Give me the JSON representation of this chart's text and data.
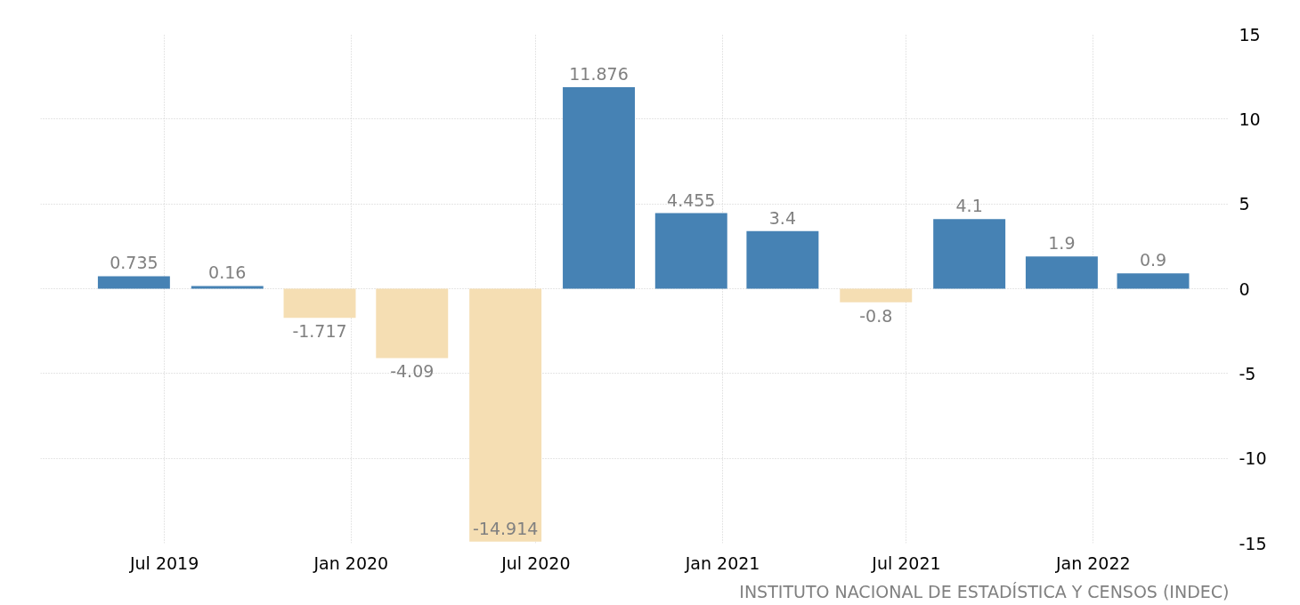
{
  "chart_data": {
    "type": "bar",
    "x": [
      "2019-06-01",
      "2019-09-01",
      "2019-12-01",
      "2020-03-01",
      "2020-06-01",
      "2020-09-01",
      "2020-12-01",
      "2021-03-01",
      "2021-06-01",
      "2021-09-01",
      "2021-12-01",
      "2022-03-01"
    ],
    "values": [
      0.735,
      0.16,
      -1.717,
      -4.09,
      -14.914,
      11.876,
      4.455,
      3.4,
      -0.8,
      4.1,
      1.9,
      0.9
    ],
    "colors": [
      "#4682b4",
      "#4682b4",
      "#f5deb3",
      "#f5deb3",
      "#f5deb3",
      "#4682b4",
      "#4682b4",
      "#4682b4",
      "#f5deb3",
      "#4682b4",
      "#4682b4",
      "#4682b4"
    ],
    "data_labels": true,
    "xlim": [
      "2019-03-01",
      "2022-05-15"
    ],
    "xticks": [
      {
        "value": "2019-07-01",
        "label": "Jul 2019"
      },
      {
        "value": "2020-01-01",
        "label": "Jan 2020"
      },
      {
        "value": "2020-07-01",
        "label": "Jul 2020"
      },
      {
        "value": "2021-01-01",
        "label": "Jan 2021"
      },
      {
        "value": "2021-07-01",
        "label": "Jul 2021"
      },
      {
        "value": "2022-01-01",
        "label": "Jan 2022"
      }
    ],
    "ylim": [
      -15,
      15
    ],
    "yticks": [
      -15,
      -10,
      -5,
      0,
      5,
      10,
      15
    ],
    "grid": true,
    "annotations": [
      "INSTITUTO NACIONAL DE ESTADÍSTICA Y CENSOS (INDEC)"
    ]
  }
}
